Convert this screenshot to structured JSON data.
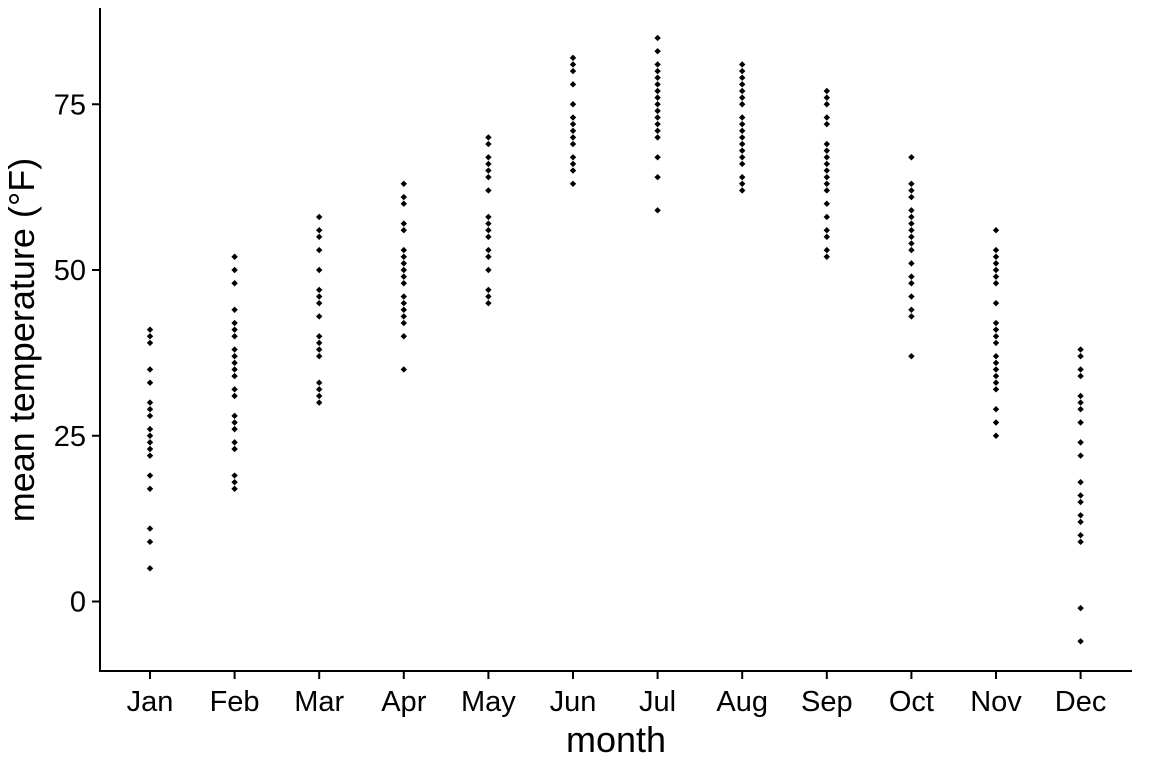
{
  "chart_data": {
    "type": "scatter",
    "title": "",
    "xlabel": "month",
    "ylabel": "mean temperature (°F)",
    "categories": [
      "Jan",
      "Feb",
      "Mar",
      "Apr",
      "May",
      "Jun",
      "Jul",
      "Aug",
      "Sep",
      "Oct",
      "Nov",
      "Dec"
    ],
    "y_ticks": [
      0,
      25,
      50,
      75
    ],
    "ylim": [
      -10,
      89
    ],
    "grid": false,
    "legend": "none",
    "point_color": "#000000",
    "values": {
      "Jan": [
        41,
        40,
        39,
        35,
        33,
        30,
        29,
        28,
        26,
        25,
        24,
        23,
        22,
        19,
        17,
        11,
        9,
        5
      ],
      "Feb": [
        52,
        50,
        48,
        44,
        42,
        41,
        40,
        38,
        37,
        36,
        35,
        34,
        32,
        31,
        28,
        27,
        26,
        24,
        23,
        19,
        18,
        17
      ],
      "Mar": [
        58,
        56,
        55,
        53,
        50,
        47,
        46,
        45,
        43,
        40,
        39,
        38,
        37,
        33,
        32,
        31,
        30
      ],
      "Apr": [
        63,
        61,
        60,
        57,
        56,
        53,
        52,
        51,
        50,
        49,
        48,
        46,
        45,
        44,
        43,
        42,
        40,
        35
      ],
      "May": [
        70,
        69,
        67,
        66,
        65,
        64,
        62,
        58,
        57,
        56,
        55,
        53,
        52,
        50,
        47,
        46,
        45
      ],
      "Jun": [
        82,
        81,
        80,
        78,
        75,
        73,
        72,
        71,
        70,
        69,
        67,
        66,
        65,
        63
      ],
      "Jul": [
        85,
        83,
        81,
        80,
        79,
        78,
        77,
        76,
        75,
        74,
        73,
        72,
        71,
        70,
        67,
        64,
        59
      ],
      "Aug": [
        81,
        80,
        79,
        78,
        77,
        76,
        75,
        73,
        72,
        71,
        70,
        69,
        68,
        67,
        66,
        64,
        63,
        62
      ],
      "Sep": [
        77,
        76,
        75,
        73,
        72,
        69,
        68,
        67,
        66,
        65,
        64,
        63,
        62,
        60,
        58,
        56,
        55,
        53,
        52
      ],
      "Oct": [
        67,
        63,
        62,
        61,
        59,
        58,
        57,
        56,
        55,
        54,
        53,
        51,
        49,
        48,
        46,
        44,
        43,
        37
      ],
      "Nov": [
        56,
        53,
        52,
        51,
        50,
        49,
        48,
        45,
        42,
        41,
        40,
        39,
        37,
        36,
        35,
        34,
        33,
        32,
        29,
        27,
        25
      ],
      "Dec": [
        38,
        37,
        35,
        34,
        31,
        30,
        29,
        27,
        24,
        22,
        18,
        16,
        15,
        13,
        12,
        10,
        9,
        -1,
        -6
      ]
    }
  }
}
